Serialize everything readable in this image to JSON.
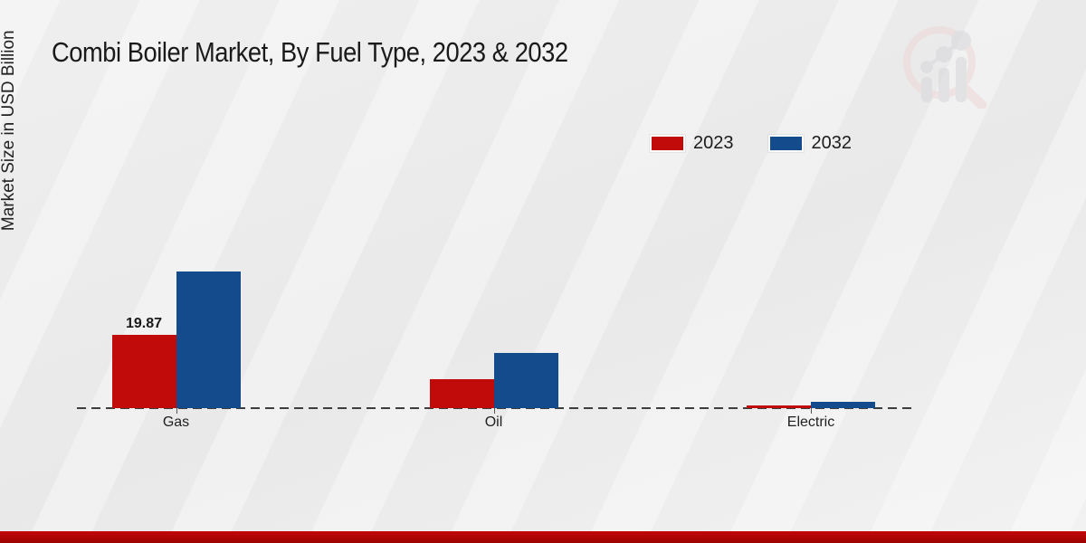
{
  "title": "Combi Boiler Market, By Fuel Type, 2023 & 2032",
  "ylabel": "Market Size in USD Billion",
  "legend": [
    {
      "label": "2023",
      "color": "#c10a0a"
    },
    {
      "label": "2032",
      "color": "#134b8c"
    }
  ],
  "colors": {
    "series_2023": "#c10a0a",
    "series_2032": "#134b8c",
    "footer_strip": "#b30505",
    "baseline": "#3d3d3d"
  },
  "watermark_icon": "magnifier-bar-chart-logo-icon",
  "chart_data": {
    "type": "bar",
    "categories": [
      "Gas",
      "Oil",
      "Electric"
    ],
    "series": [
      {
        "name": "2023",
        "color": "#c10a0a",
        "values": [
          19.87,
          7.9,
          0.7
        ]
      },
      {
        "name": "2032",
        "color": "#134b8c",
        "values": [
          37.0,
          15.0,
          1.8
        ]
      }
    ],
    "bar_labels": [
      {
        "series": 0,
        "category": 0,
        "text": "19.87"
      }
    ],
    "title": "Combi Boiler Market, By Fuel Type, 2023 & 2032",
    "xlabel": "",
    "ylabel": "Market Size in USD Billion",
    "ylim": [
      0,
      40
    ],
    "grid": false,
    "y_axis_ticks_visible": false,
    "legend_position": "top-right",
    "baseline_style": "dashed"
  }
}
